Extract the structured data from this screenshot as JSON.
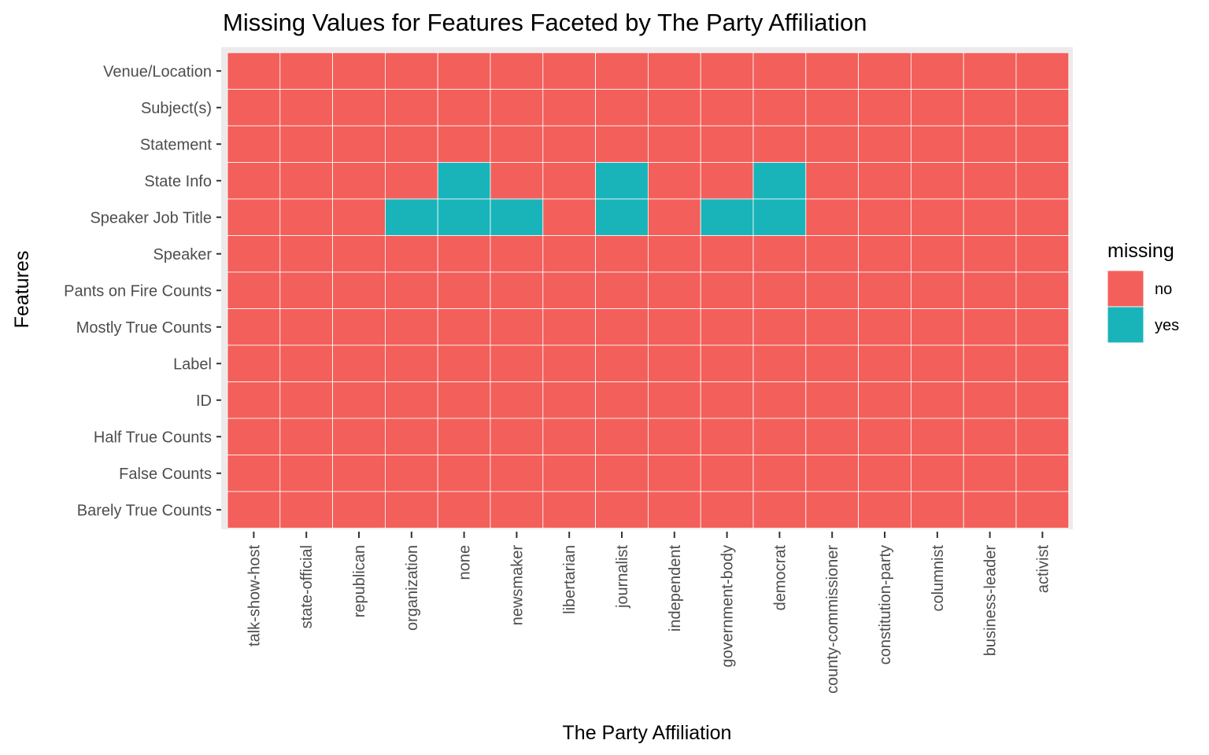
{
  "chart_data": {
    "type": "heatmap",
    "title": "Missing Values for Features Faceted by The Party Affiliation",
    "xlabel": "The Party Affiliation",
    "ylabel": "Features",
    "x_categories": [
      "talk-show-host",
      "state-official",
      "republican",
      "organization",
      "none",
      "newsmaker",
      "libertarian",
      "journalist",
      "independent",
      "government-body",
      "democrat",
      "county-commissioner",
      "constitution-party",
      "columnist",
      "business-leader",
      "activist"
    ],
    "y_categories": [
      "Venue/Location",
      "Subject(s)",
      "Statement",
      "State Info",
      "Speaker Job Title",
      "Speaker",
      "Pants on Fire Counts",
      "Mostly True Counts",
      "Label",
      "ID",
      "Half True Counts",
      "False Counts",
      "Barely True Counts"
    ],
    "missing_cells": [
      {
        "feature": "State Info",
        "party": "none"
      },
      {
        "feature": "State Info",
        "party": "journalist"
      },
      {
        "feature": "State Info",
        "party": "democrat"
      },
      {
        "feature": "Speaker Job Title",
        "party": "organization"
      },
      {
        "feature": "Speaker Job Title",
        "party": "none"
      },
      {
        "feature": "Speaker Job Title",
        "party": "newsmaker"
      },
      {
        "feature": "Speaker Job Title",
        "party": "journalist"
      },
      {
        "feature": "Speaker Job Title",
        "party": "government-body"
      },
      {
        "feature": "Speaker Job Title",
        "party": "democrat"
      }
    ],
    "legend": {
      "title": "missing",
      "placement": "right",
      "items": [
        {
          "label": "no",
          "color": "#F35F5B"
        },
        {
          "label": "yes",
          "color": "#19B4B9"
        }
      ]
    },
    "colors": {
      "panel_bg": "#EBEBEB",
      "tile_border": "#FFFFFF"
    }
  }
}
